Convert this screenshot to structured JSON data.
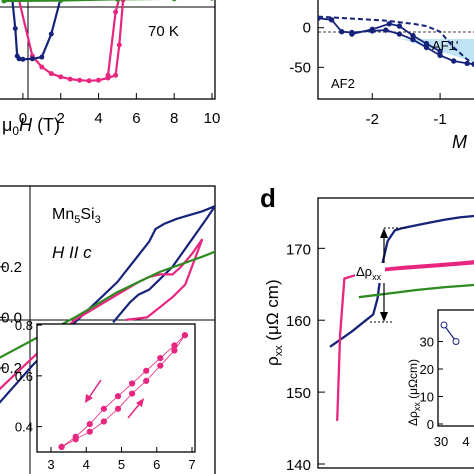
{
  "colors": {
    "pink": "#e8267f",
    "navy": "#16237a",
    "green": "#2f8a22",
    "blue": "#1f3aa0",
    "shade": "#bfe3f5"
  },
  "panel_a": {
    "temp_label": "70 K",
    "xlabel_mu": "μ",
    "xlabel_sub": "0",
    "xlabel_var": "H",
    "xlabel_unit": " (T)",
    "xticks": [
      "0",
      "2",
      "4",
      "6",
      "8",
      "10"
    ]
  },
  "panel_b": {
    "labels": {
      "af2": "AF2",
      "af1p": "AF1'"
    },
    "xlabel": "M",
    "xticks": [
      "-2",
      "-1"
    ],
    "yticks": [
      "0",
      "-50"
    ]
  },
  "panel_c": {
    "compound": {
      "base1": "Mn",
      "sub1": "5",
      "base2": "Si",
      "sub2": "3"
    },
    "field_label": "H II c",
    "yticks": [
      "0.2",
      "0.0",
      "-0.2"
    ],
    "inset_yticks": [
      "0.8",
      "0.6",
      "0.4"
    ],
    "inset_xticks": [
      "3",
      "4",
      "5",
      "6",
      "7"
    ]
  },
  "panel_d": {
    "letter": "d",
    "ylabel": {
      "base": "ρ",
      "sub": "xx",
      "unit": " (μΩ cm)"
    },
    "yticks": [
      "170",
      "160",
      "150",
      "140"
    ],
    "annotation": {
      "base": "Δρ",
      "sub": "xx"
    },
    "inset_ylabel": {
      "base": "Δρ",
      "sub": "xx",
      "unit": " (μΩcm)"
    },
    "inset_yticks": [
      "30",
      "20",
      "10",
      "0"
    ],
    "inset_xticks": [
      "30",
      "4"
    ]
  },
  "chart_data": [
    {
      "panel": "a",
      "type": "line",
      "xlabel": "μ0H (T)",
      "xlim": [
        -1.0,
        10.0
      ],
      "ylim": [
        -1.0,
        1.0
      ],
      "series": [
        {
          "color": "pink",
          "x": [
            -0.3,
            0.5,
            1.0,
            1.5,
            2.0,
            2.5,
            3.0,
            3.5,
            4.0,
            4.5,
            4.9,
            5.1,
            5.3,
            5.6,
            6.0
          ],
          "y": [
            0.95,
            -0.2,
            -0.4,
            -0.52,
            -0.58,
            -0.62,
            -0.64,
            -0.65,
            -0.64,
            -0.6,
            -0.55,
            0.0,
            0.82,
            0.9,
            0.92
          ]
        },
        {
          "color": "pink",
          "x": [
            4.5,
            4.9,
            5.1,
            5.3
          ],
          "y": [
            -0.55,
            0.6,
            0.85,
            0.9
          ]
        },
        {
          "color": "navy",
          "x": [
            -0.6,
            -0.4,
            -0.3,
            -0.2,
            0.0,
            0.5,
            1.0,
            1.5,
            2.0,
            2.5,
            3.0,
            3.5,
            4.0,
            5.0,
            6.0,
            8.0,
            10.0
          ],
          "y": [
            0.95,
            0.3,
            -0.2,
            -0.25,
            -0.26,
            -0.25,
            -0.22,
            0.2,
            0.85,
            0.88,
            0.89,
            0.9,
            0.9,
            0.9,
            0.9,
            0.9,
            0.9
          ]
        },
        {
          "color": "green",
          "x": [
            -1.0,
            2.0,
            5.0,
            8.0,
            10.0
          ],
          "y": [
            0.8,
            0.81,
            0.83,
            0.84,
            0.85
          ]
        }
      ]
    },
    {
      "panel": "b",
      "type": "line",
      "xlabel": "M",
      "xlim": [
        -2.8,
        -0.5
      ],
      "ylim": [
        -90,
        35
      ],
      "series": [
        {
          "color": "navy",
          "x": [
            -2.8,
            -2.6,
            -2.45,
            -2.3,
            -2.0,
            -1.8,
            -1.6,
            -1.4,
            -1.2,
            -1.0,
            -0.8,
            -0.6,
            -0.5
          ],
          "y": [
            12,
            10,
            -5,
            -6,
            -4,
            -3,
            -8,
            -15,
            -25,
            -35,
            -42,
            -45,
            -46
          ]
        },
        {
          "color": "navy",
          "x": [
            -2.3,
            -2.0,
            -1.75,
            -1.6,
            -1.4,
            -1.2,
            -1.0
          ],
          "y": [
            -8,
            -2,
            5,
            2,
            -10,
            -20,
            -30
          ]
        },
        {
          "color": "navy",
          "x": [
            -2.8,
            -2.6,
            -2.4,
            -2.2,
            -2.0,
            -1.8,
            -1.6,
            -1.4,
            -1.2,
            -1.0,
            -0.8,
            -0.6,
            -0.5
          ],
          "y": [
            14,
            13,
            12,
            11,
            10,
            9,
            7,
            5,
            2,
            -5,
            -25,
            -40,
            -46
          ]
        }
      ]
    },
    {
      "panel": "c",
      "type": "line",
      "xlim": [
        -4.0,
        6.6
      ],
      "ylim": [
        -0.62,
        0.52
      ],
      "yticks": [
        "0.2",
        "0.0",
        "-0.2"
      ],
      "series": [
        {
          "color": "navy",
          "x": [
            -4.0,
            -2.0,
            0.0,
            2.0,
            3.5,
            3.8,
            4.2,
            4.8,
            5.6,
            6.0,
            6.6
          ],
          "y": [
            -0.38,
            -0.19,
            -0.02,
            0.14,
            0.3,
            0.35,
            0.37,
            0.39,
            0.41,
            0.42,
            0.44
          ]
        },
        {
          "color": "navy",
          "x": [
            1.8,
            2.6,
            3.0,
            3.5,
            4.6,
            6.2,
            6.6
          ],
          "y": [
            -0.02,
            0.06,
            0.09,
            0.11,
            0.2,
            0.39,
            0.44
          ]
        },
        {
          "color": "pink",
          "x": [
            -4.0,
            -2.0,
            0.0,
            2.0,
            3.0,
            3.5,
            4.0,
            4.6,
            5.0,
            5.5,
            6.0
          ],
          "y": [
            -0.32,
            -0.16,
            -0.01,
            0.09,
            0.14,
            0.16,
            0.17,
            0.17,
            0.2,
            0.25,
            0.31
          ]
        },
        {
          "color": "pink",
          "x": [
            2.4,
            3.4,
            4.0,
            4.6,
            5.2,
            6.0
          ],
          "y": [
            -0.01,
            0.0,
            0.04,
            0.08,
            0.13,
            0.31
          ]
        },
        {
          "color": "green",
          "x": [
            -4.0,
            -2.0,
            0.0,
            2.0,
            4.0,
            6.0,
            6.6
          ],
          "y": [
            -0.18,
            -0.09,
            0.0,
            0.1,
            0.18,
            0.24,
            0.26
          ]
        }
      ],
      "inset": {
        "xlim": [
          3,
          7
        ],
        "ylim": [
          0.3,
          0.82
        ],
        "xticks": [
          "3",
          "4",
          "5",
          "6",
          "7"
        ],
        "yticks": [
          "0.8",
          "0.6",
          "0.4"
        ],
        "series": [
          {
            "color": "pink",
            "x": [
              3.3,
              3.7,
              4.1,
              4.5,
              4.9,
              5.3,
              5.7,
              6.1,
              6.5,
              6.8
            ],
            "y": [
              0.32,
              0.36,
              0.41,
              0.47,
              0.52,
              0.57,
              0.62,
              0.67,
              0.72,
              0.76
            ]
          },
          {
            "color": "pink",
            "x": [
              3.3,
              3.7,
              4.1,
              4.5,
              4.9,
              5.3,
              5.7,
              6.1,
              6.5,
              6.8
            ],
            "y": [
              0.32,
              0.35,
              0.38,
              0.42,
              0.47,
              0.53,
              0.58,
              0.64,
              0.7,
              0.76
            ]
          }
        ]
      }
    },
    {
      "panel": "d",
      "type": "line",
      "ylabel": "ρxx (μΩ cm)",
      "ylim": [
        140,
        177
      ],
      "yticks": [
        170,
        160,
        150,
        140
      ],
      "series": [
        {
          "color": "navy",
          "x": [
            0.0,
            0.05,
            0.15,
            0.25,
            0.3,
            0.33,
            0.36,
            0.4,
            0.45,
            0.5,
            0.6,
            0.7,
            0.8,
            0.9,
            1.0
          ],
          "y": [
            156.3,
            157.0,
            158.4,
            160.0,
            160.8,
            163.0,
            167.5,
            171.0,
            172.5,
            172.8,
            173.2,
            173.6,
            174.0,
            174.3,
            174.5
          ]
        },
        {
          "color": "pink",
          "x": [
            0.05,
            0.07,
            0.1,
            0.2,
            0.4,
            0.6,
            0.8,
            1.0
          ],
          "y": [
            146.0,
            158.0,
            165.8,
            166.4,
            167.0,
            167.3,
            167.6,
            167.9
          ]
        },
        {
          "color": "pink",
          "x": [
            0.35,
            0.5,
            0.7,
            0.9,
            1.0
          ],
          "y": [
            167.1,
            167.4,
            167.7,
            168.0,
            168.2
          ]
        },
        {
          "color": "green",
          "x": [
            0.2,
            0.4,
            0.6,
            0.8,
            1.0
          ],
          "y": [
            163.2,
            163.7,
            164.2,
            164.6,
            164.9
          ]
        }
      ],
      "inset": {
        "ylim": [
          0,
          40
        ],
        "yticks": [
          "30",
          "20",
          "10",
          "0"
        ],
        "xticks": [
          "30",
          "4"
        ],
        "series": [
          {
            "color": "navy",
            "x": [
              0.15,
              0.45
            ],
            "y": [
              36,
              30
            ]
          }
        ]
      }
    }
  ]
}
